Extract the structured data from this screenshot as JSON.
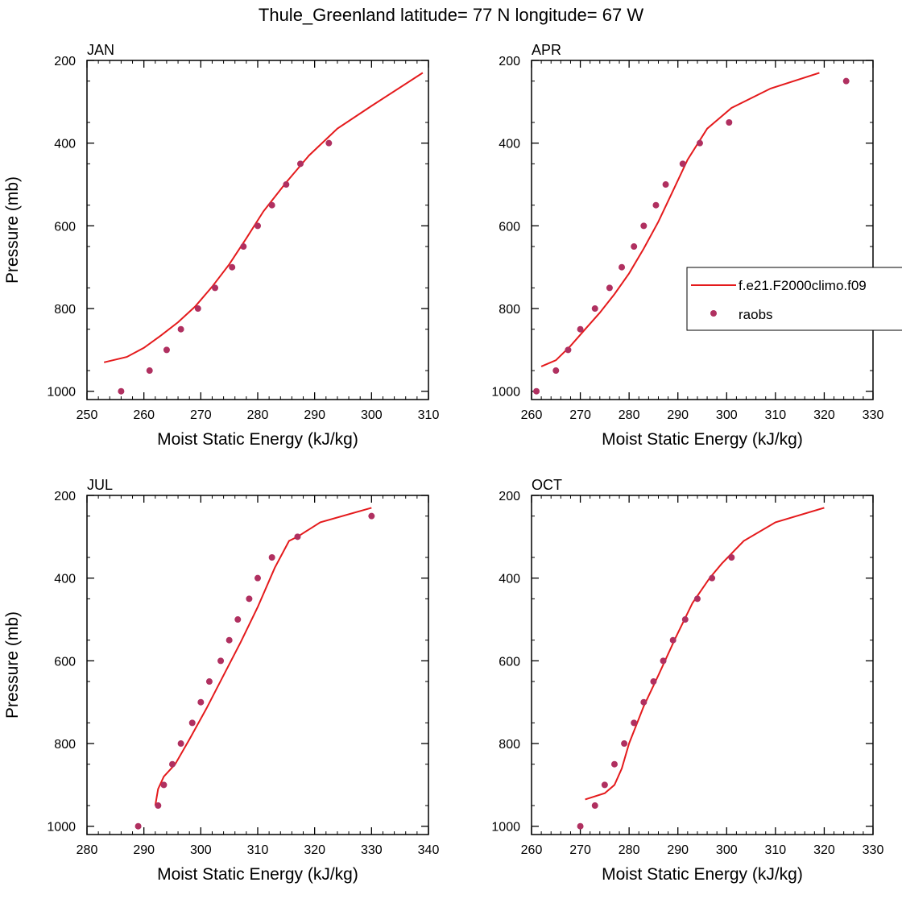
{
  "title": "Thule_Greenland  latitude= 77 N longitude= 67 W",
  "legend": {
    "placement": "right-middle of APR panel",
    "entries": [
      {
        "label": "f.e21.F2000climo.f09",
        "kind": "line",
        "color": "#e41a1c"
      },
      {
        "label": "raobs",
        "kind": "marker",
        "color": "#b03060"
      }
    ]
  },
  "colors": {
    "model": "#e41a1c",
    "obs": "#b03060",
    "axis": "#000000"
  },
  "chart_data": [
    {
      "type": "line",
      "panel_title": "JAN",
      "xlabel": "Moist Static Energy (kJ/kg)",
      "ylabel": "Pressure (mb)",
      "xlim": [
        250,
        310
      ],
      "ylim": [
        1020,
        200
      ],
      "xticks": [
        250,
        260,
        270,
        280,
        290,
        300,
        310
      ],
      "yticks": [
        200,
        400,
        600,
        800,
        1000
      ],
      "series": [
        {
          "name": "f.e21.F2000climo.f09",
          "kind": "line",
          "x": [
            253,
            257,
            260,
            263,
            266,
            269,
            272,
            275,
            278,
            281,
            285,
            289,
            294,
            300,
            309
          ],
          "y": [
            930,
            917,
            895,
            865,
            833,
            795,
            747,
            693,
            630,
            565,
            495,
            430,
            365,
            310,
            230
          ]
        },
        {
          "name": "raobs",
          "kind": "scatter",
          "x": [
            256,
            261,
            264,
            266.5,
            269.5,
            272.5,
            275.5,
            277.5,
            280,
            282.5,
            285,
            287.5,
            292.5
          ],
          "y": [
            1000,
            950,
            900,
            850,
            800,
            750,
            700,
            650,
            600,
            550,
            500,
            450,
            400
          ]
        }
      ]
    },
    {
      "type": "line",
      "panel_title": "APR",
      "xlabel": "Moist Static Energy (kJ/kg)",
      "ylabel": "",
      "xlim": [
        260,
        330
      ],
      "ylim": [
        1020,
        200
      ],
      "xticks": [
        260,
        270,
        280,
        290,
        300,
        310,
        320,
        330
      ],
      "yticks": [
        200,
        400,
        600,
        800,
        1000
      ],
      "series": [
        {
          "name": "f.e21.F2000climo.f09",
          "kind": "line",
          "x": [
            262,
            265,
            268,
            271,
            274,
            277,
            280,
            283,
            286,
            289,
            292,
            296,
            301,
            309,
            319
          ],
          "y": [
            940,
            925,
            890,
            850,
            810,
            765,
            715,
            655,
            590,
            515,
            440,
            365,
            315,
            268,
            230
          ]
        },
        {
          "name": "raobs",
          "kind": "scatter",
          "x": [
            261,
            265,
            267.5,
            270,
            273,
            276,
            278.5,
            281,
            283,
            285.5,
            287.5,
            291,
            294.5,
            300.5,
            324.5
          ],
          "y": [
            1000,
            950,
            900,
            850,
            800,
            750,
            700,
            650,
            600,
            550,
            500,
            450,
            400,
            350,
            250
          ]
        }
      ]
    },
    {
      "type": "line",
      "panel_title": "JUL",
      "xlabel": "Moist Static Energy (kJ/kg)",
      "ylabel": "Pressure (mb)",
      "xlim": [
        280,
        340
      ],
      "ylim": [
        1020,
        200
      ],
      "xticks": [
        280,
        290,
        300,
        310,
        320,
        330,
        340
      ],
      "yticks": [
        200,
        400,
        600,
        800,
        1000
      ],
      "series": [
        {
          "name": "f.e21.F2000climo.f09",
          "kind": "line",
          "x": [
            292,
            292.5,
            293.5,
            295.5,
            298,
            301,
            304,
            307,
            310,
            313,
            315.5,
            317,
            321,
            330
          ],
          "y": [
            950,
            910,
            880,
            850,
            790,
            715,
            635,
            555,
            470,
            375,
            310,
            300,
            265,
            230
          ]
        },
        {
          "name": "raobs",
          "kind": "scatter",
          "x": [
            289,
            292.5,
            293.5,
            295,
            296.5,
            298.5,
            300,
            301.5,
            303.5,
            305,
            306.5,
            308.5,
            310,
            312.5,
            317,
            330
          ],
          "y": [
            1000,
            950,
            900,
            850,
            800,
            750,
            700,
            650,
            600,
            550,
            500,
            450,
            400,
            350,
            300,
            250
          ]
        }
      ]
    },
    {
      "type": "line",
      "panel_title": "OCT",
      "xlabel": "Moist Static Energy (kJ/kg)",
      "ylabel": "",
      "xlim": [
        260,
        330
      ],
      "ylim": [
        1020,
        200
      ],
      "xticks": [
        260,
        270,
        280,
        290,
        300,
        310,
        320,
        330
      ],
      "yticks": [
        200,
        400,
        600,
        800,
        1000
      ],
      "series": [
        {
          "name": "f.e21.F2000climo.f09",
          "kind": "line",
          "x": [
            271,
            275,
            277,
            278.5,
            280,
            283,
            286,
            289.5,
            293,
            296.5,
            299,
            303.5,
            310,
            320
          ],
          "y": [
            935,
            920,
            900,
            860,
            800,
            710,
            635,
            545,
            460,
            400,
            365,
            310,
            265,
            230
          ]
        },
        {
          "name": "raobs",
          "kind": "scatter",
          "x": [
            270,
            273,
            275,
            277,
            279,
            281,
            283,
            285,
            287,
            289,
            291.5,
            294,
            297,
            301
          ],
          "y": [
            1000,
            950,
            900,
            850,
            800,
            750,
            700,
            650,
            600,
            550,
            500,
            450,
            400,
            350
          ]
        }
      ]
    }
  ]
}
